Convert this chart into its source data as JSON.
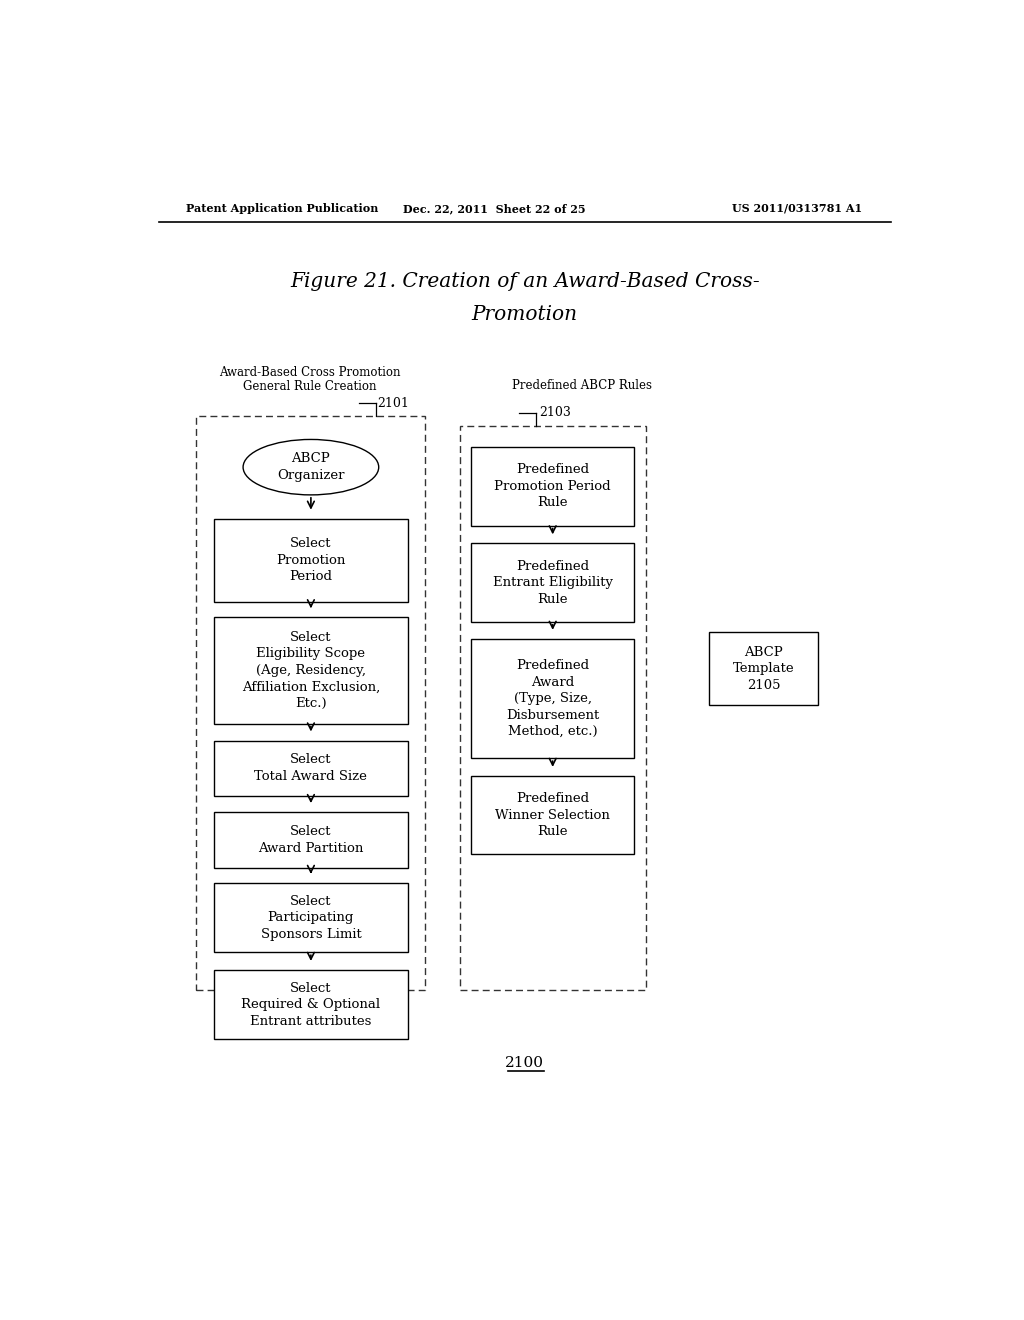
{
  "title_line1": "Figure 21. Creation of an Award-Based Cross-",
  "title_line2": "Promotion",
  "header_left": "Patent Application Publication",
  "header_middle": "Dec. 22, 2011  Sheet 22 of 25",
  "header_right": "US 2011/0313781 A1",
  "footer_label": "2100",
  "label_left_line1": "Award-Based Cross Promotion",
  "label_left_line2": "General Rule Creation",
  "label_left_num": "2101",
  "label_right": "Predefined ABCP Rules",
  "label_right_num": "2103",
  "bg_color": "#ffffff",
  "organizer_text": "ABCP\nOrganizer",
  "left_boxes": [
    "Select\nPromotion\nPeriod",
    "Select\nEligibility Scope\n(Age, Residency,\nAffiliation Exclusion,\nEtc.)",
    "Select\nTotal Award Size",
    "Select\nAward Partition",
    "Select\nParticipating\nSponsors Limit",
    "Select\nRequired & Optional\nEntrant attributes"
  ],
  "right_boxes": [
    "Predefined\nPromotion Period\nRule",
    "Predefined\nEntrant Eligibility\nRule",
    "Predefined\nAward\n(Type, Size,\nDisbursement\nMethod, etc.)",
    "Predefined\nWinner Selection\nRule"
  ],
  "template_text": "ABCP\nTemplate\n2105"
}
